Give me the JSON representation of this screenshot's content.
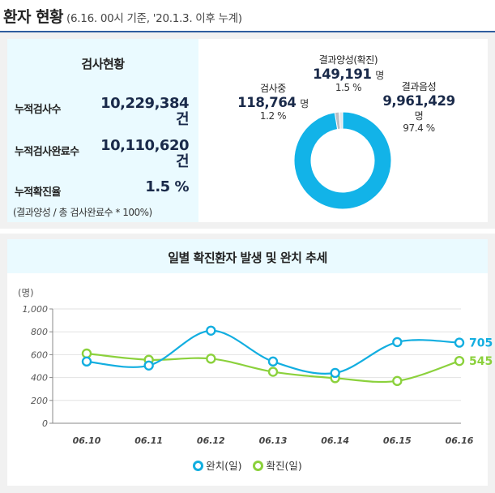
{
  "header": {
    "title": "환자 현황",
    "subtitle": "(6.16. 00시 기준, '20.1.3. 이후 누계)"
  },
  "test_status": {
    "title": "검사현황",
    "rows": [
      {
        "label": "누적검사수",
        "value": "10,229,384",
        "unit": "건"
      },
      {
        "label": "누적검사완료수",
        "value": "10,110,620",
        "unit": "건"
      },
      {
        "label": "누적확진율",
        "value": "1.5 %"
      }
    ],
    "note": "(결과양성 / 총 검사완료수 * 100%)"
  },
  "pie": {
    "colors": {
      "negative": "#12b3e8",
      "positive": "#b9bec5",
      "testing": "#e3e6ea"
    },
    "labels": {
      "positive": {
        "name": "결과양성(확진)",
        "value": "149,191",
        "unit": "명",
        "pct": "1.5 %"
      },
      "testing": {
        "name": "검사중",
        "value": "118,764",
        "unit": "명",
        "pct": "1.2 %"
      },
      "negative": {
        "name": "결과음성",
        "value": "9,961,429",
        "unit": "명",
        "pct": "97.4 %"
      }
    }
  },
  "line_chart": {
    "title": "일별 확진환자 발생 및 완치 추세",
    "legend": {
      "recovered": "완치(일)",
      "confirmed": "확진(일)"
    }
  },
  "chart_data": [
    {
      "type": "pie",
      "categories": [
        "결과양성(확진)",
        "검사중",
        "결과음성"
      ],
      "values": [
        149191,
        118764,
        9961429
      ],
      "percent": [
        1.5,
        1.2,
        97.4
      ]
    },
    {
      "type": "line",
      "title": "일별 확진환자 발생 및 완치 추세",
      "unit_label": "(명)",
      "categories": [
        "06.10",
        "06.11",
        "06.12",
        "06.13",
        "06.14",
        "06.15",
        "06.16"
      ],
      "series": [
        {
          "name": "완치(일)",
          "color": "#12aee0",
          "values": [
            540,
            505,
            810,
            540,
            440,
            710,
            705
          ],
          "end_label": "705"
        },
        {
          "name": "확진(일)",
          "color": "#8bd13c",
          "values": [
            610,
            555,
            565,
            450,
            395,
            370,
            545
          ],
          "end_label": "545"
        }
      ],
      "ylim": [
        0,
        1000
      ],
      "yticks": [
        0,
        200,
        400,
        600,
        800,
        1000
      ],
      "ytick_labels": [
        "0",
        "200",
        "400",
        "600",
        "800",
        "1,000"
      ],
      "grid": true
    }
  ]
}
